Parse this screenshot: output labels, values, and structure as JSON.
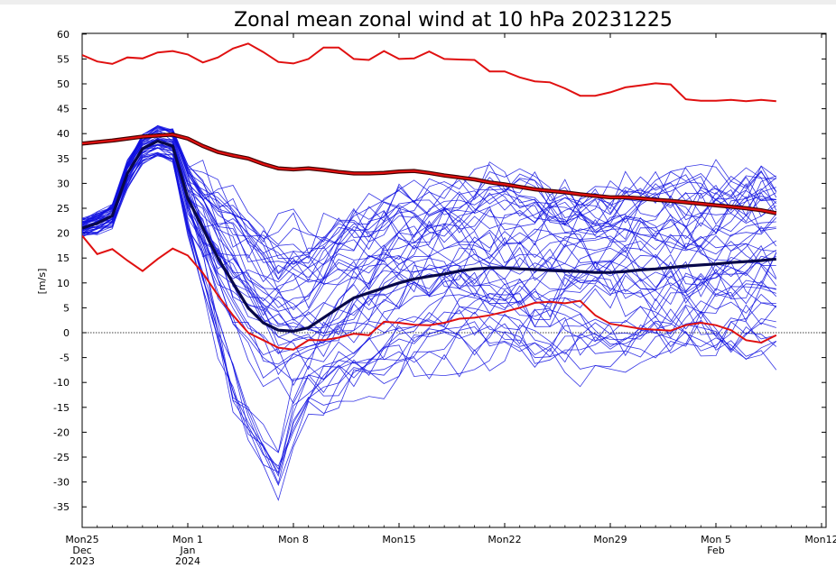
{
  "chart_data": {
    "type": "line",
    "title": "Zonal mean zonal wind at 10 hPa 20231225",
    "xlabel": "",
    "ylabel": "[m/s]",
    "ylim": [
      -38,
      60
    ],
    "xlim": [
      0,
      48
    ],
    "yticks": [
      60,
      55,
      50,
      45,
      40,
      35,
      30,
      25,
      20,
      15,
      10,
      5,
      0,
      -5,
      -10,
      -15,
      -20,
      -25,
      -30,
      -35
    ],
    "xticks": [
      {
        "x": 0,
        "lines": [
          "Mon25",
          "Dec",
          "2023"
        ]
      },
      {
        "x": 7,
        "lines": [
          "Mon 1",
          "Jan",
          "2024"
        ]
      },
      {
        "x": 14,
        "lines": [
          "Mon 8"
        ]
      },
      {
        "x": 21,
        "lines": [
          "Mon15"
        ]
      },
      {
        "x": 28,
        "lines": [
          "Mon22"
        ]
      },
      {
        "x": 35,
        "lines": [
          "Mon29"
        ]
      },
      {
        "x": 42,
        "lines": [
          "Mon 5",
          "Feb"
        ]
      },
      {
        "x": 49,
        "lines": [
          "Mon12"
        ]
      }
    ],
    "zero_line": {
      "y": 0,
      "style": "dotted"
    },
    "ensemble_count": 50,
    "colors": {
      "members": "#1010e0",
      "mean": "#08084a",
      "climatology": "#e01010",
      "climatology_edge": "#400000"
    },
    "series": [
      {
        "role": "climatology_max",
        "x": [
          0,
          1,
          2,
          3,
          4,
          5,
          6,
          7,
          8,
          9,
          10,
          11,
          12,
          13,
          14,
          15,
          16,
          17,
          18,
          19,
          20,
          21,
          22,
          23,
          24,
          25,
          26,
          27,
          28,
          29,
          30,
          31,
          32,
          33,
          34,
          35,
          36,
          37,
          38,
          39,
          40,
          41,
          42,
          43,
          44,
          45,
          46
        ],
        "values": [
          55.8,
          54.5,
          54.0,
          55.3,
          55.1,
          56.3,
          56.6,
          55.9,
          54.3,
          55.3,
          57.1,
          58.1,
          56.4,
          54.4,
          54.1,
          55.0,
          57.3,
          57.3,
          55.0,
          54.8,
          56.6,
          55.0,
          55.1,
          56.5,
          55.0,
          54.9,
          54.8,
          52.5,
          52.5,
          51.3,
          50.5,
          50.3,
          49.1,
          47.6,
          47.6,
          48.3,
          49.3,
          49.7,
          50.1,
          49.9,
          46.9,
          46.6,
          46.6,
          46.8,
          46.5,
          46.8,
          46.5
        ]
      },
      {
        "role": "climatology_mean",
        "x": [
          0,
          2,
          4,
          5,
          6,
          7,
          8,
          9,
          10,
          11,
          12,
          13,
          14,
          15,
          16,
          17,
          18,
          19,
          20,
          21,
          22,
          23,
          24,
          25,
          26,
          27,
          28,
          29,
          30,
          31,
          32,
          33,
          34,
          35,
          36,
          37,
          38,
          39,
          40,
          41,
          42,
          43,
          44,
          45,
          46
        ],
        "values": [
          38.0,
          38.6,
          39.4,
          39.6,
          39.8,
          39.0,
          37.5,
          36.3,
          35.6,
          35.0,
          33.9,
          33.0,
          32.8,
          33.0,
          32.7,
          32.3,
          32.0,
          32.0,
          32.1,
          32.4,
          32.5,
          32.1,
          31.6,
          31.2,
          30.8,
          30.2,
          29.8,
          29.3,
          28.8,
          28.5,
          28.2,
          27.8,
          27.5,
          27.2,
          27.2,
          27.0,
          26.7,
          26.5,
          26.2,
          25.9,
          25.6,
          25.3,
          25.0,
          24.6,
          24.0
        ]
      },
      {
        "role": "climatology_min",
        "x": [
          0,
          1,
          2,
          3,
          4,
          5,
          6,
          7,
          8,
          9,
          10,
          11,
          12,
          13,
          14,
          15,
          16,
          17,
          18,
          19,
          20,
          21,
          22,
          23,
          24,
          25,
          26,
          27,
          28,
          29,
          30,
          31,
          32,
          33,
          34,
          35,
          36,
          37,
          38,
          39,
          40,
          41,
          42,
          43,
          44,
          45,
          46
        ],
        "values": [
          19.5,
          15.8,
          16.8,
          14.5,
          12.4,
          14.8,
          16.9,
          15.5,
          12.0,
          7.5,
          3.5,
          0.0,
          -1.5,
          -3.0,
          -3.4,
          -1.5,
          -1.5,
          -1.0,
          -0.2,
          -0.5,
          2.2,
          2.0,
          1.6,
          1.5,
          2.0,
          2.8,
          3.0,
          3.5,
          4.2,
          5.0,
          6.0,
          6.2,
          5.9,
          6.4,
          3.5,
          1.8,
          1.3,
          0.8,
          0.6,
          0.4,
          1.5,
          2.0,
          1.5,
          0.5,
          -1.5,
          -2.0,
          -0.5
        ]
      },
      {
        "role": "ensemble_mean",
        "x": [
          0,
          1,
          2,
          3,
          4,
          5,
          6,
          7,
          8,
          9,
          10,
          11,
          12,
          13,
          14,
          15,
          16,
          17,
          18,
          19,
          20,
          21,
          22,
          23,
          24,
          25,
          26,
          27,
          28,
          29,
          30,
          31,
          32,
          33,
          34,
          35,
          36,
          37,
          38,
          39,
          40,
          41,
          42,
          43,
          44,
          45,
          46
        ],
        "values": [
          21.0,
          22.0,
          23.5,
          32.0,
          37.0,
          38.5,
          37.5,
          27.0,
          21.0,
          15.0,
          10.0,
          5.0,
          2.0,
          0.5,
          0.3,
          1.0,
          3.0,
          5.0,
          7.0,
          8.0,
          9.0,
          10.0,
          10.8,
          11.3,
          11.8,
          12.4,
          12.8,
          13.0,
          13.0,
          12.8,
          12.7,
          12.5,
          12.4,
          12.3,
          12.1,
          12.1,
          12.3,
          12.6,
          12.8,
          13.1,
          13.4,
          13.6,
          13.8,
          14.1,
          14.3,
          14.5,
          14.8
        ]
      }
    ]
  }
}
